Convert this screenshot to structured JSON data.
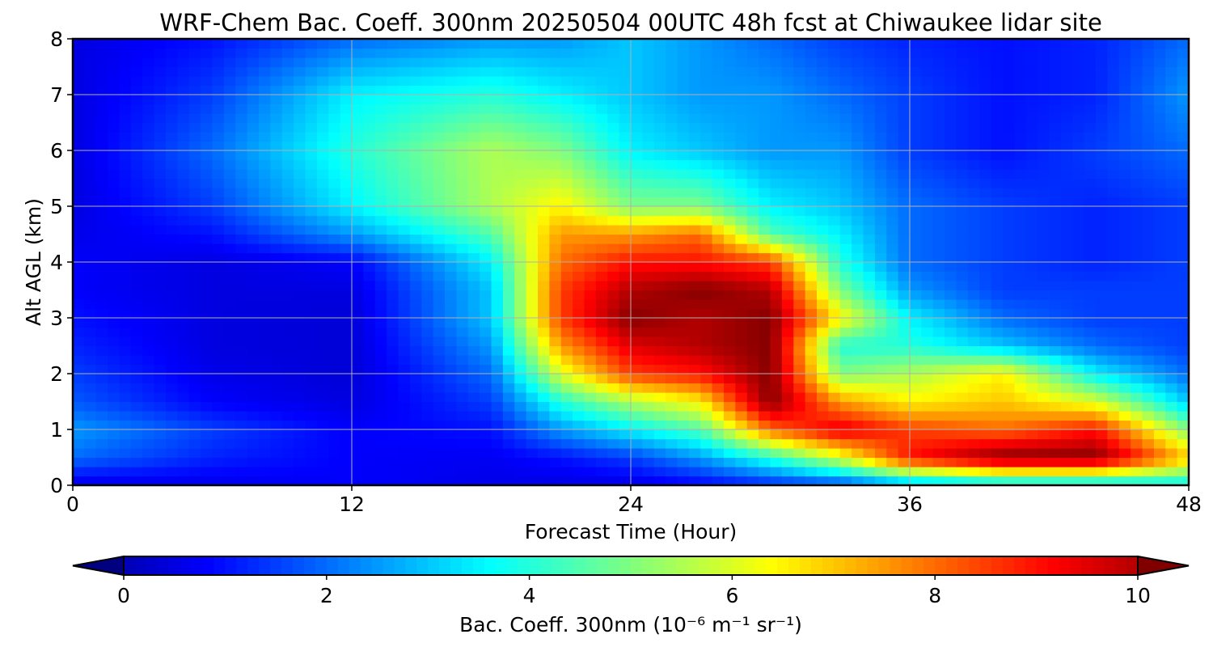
{
  "chart_data": {
    "type": "heatmap",
    "title": "WRF-Chem Bac. Coeff. 300nm  20250504 00UTC 48h fcst at Chiwaukee lidar site",
    "xlabel": "Forecast Time (Hour)",
    "ylabel": "Alt AGL (km)",
    "xlim": [
      0,
      48
    ],
    "ylim": [
      0,
      8
    ],
    "xticks": [
      0,
      12,
      24,
      36,
      48
    ],
    "yticks": [
      0,
      1,
      2,
      3,
      4,
      5,
      6,
      7,
      8
    ],
    "grid": true,
    "colormap": "jet",
    "colorbar": {
      "label": "Bac. Coeff. 300nm  (10⁻⁶ m⁻¹ sr⁻¹)",
      "min": 0,
      "max": 10,
      "ticks": [
        0,
        2,
        4,
        6,
        8,
        10
      ],
      "extend": "both",
      "orientation": "horizontal"
    },
    "x": [
      0,
      6,
      12,
      18,
      21,
      24,
      27,
      30,
      33,
      36,
      40,
      44,
      48
    ],
    "y": [
      0,
      0.5,
      1,
      1.5,
      2,
      2.5,
      3,
      3.5,
      4,
      4.5,
      5,
      6,
      7,
      8
    ],
    "z": [
      [
        0.5,
        0.6,
        0.8,
        0.6,
        0.5,
        0.5,
        0.8,
        1.2,
        1.5,
        2.5,
        3.0,
        3.0,
        3.5
      ],
      [
        2.0,
        1.2,
        0.8,
        0.7,
        1.0,
        1.5,
        2.5,
        4.0,
        6.0,
        9.0,
        10.5,
        10.5,
        7.0
      ],
      [
        2.5,
        1.5,
        0.8,
        1.0,
        2.5,
        3.5,
        4.5,
        8.0,
        9.5,
        8.5,
        8.0,
        9.0,
        5.0
      ],
      [
        1.8,
        0.8,
        0.5,
        1.5,
        4.0,
        5.5,
        6.5,
        10.5,
        7.5,
        6.5,
        7.0,
        6.0,
        3.0
      ],
      [
        1.5,
        0.6,
        0.4,
        2.0,
        6.0,
        8.5,
        9.0,
        10.5,
        5.0,
        5.5,
        6.5,
        3.5,
        2.0
      ],
      [
        1.2,
        0.5,
        0.4,
        2.5,
        7.5,
        9.5,
        10.0,
        10.5,
        4.0,
        4.0,
        3.0,
        2.0,
        1.5
      ],
      [
        1.0,
        0.5,
        0.4,
        3.0,
        8.5,
        10.5,
        10.0,
        10.5,
        6.5,
        3.5,
        2.0,
        1.5,
        1.5
      ],
      [
        0.8,
        0.5,
        0.5,
        3.0,
        8.5,
        10.0,
        10.5,
        10.0,
        5.0,
        2.5,
        1.5,
        1.5,
        1.5
      ],
      [
        0.8,
        0.5,
        0.8,
        3.5,
        8.0,
        9.0,
        9.0,
        8.5,
        4.0,
        2.0,
        1.5,
        1.2,
        1.5
      ],
      [
        0.6,
        1.0,
        2.5,
        4.5,
        7.5,
        7.5,
        8.0,
        4.5,
        3.5,
        2.0,
        1.5,
        1.2,
        1.5
      ],
      [
        0.5,
        1.5,
        3.5,
        5.5,
        6.5,
        5.0,
        5.0,
        3.5,
        3.0,
        2.0,
        1.5,
        1.2,
        1.5
      ],
      [
        0.5,
        2.0,
        4.0,
        5.5,
        5.0,
        3.5,
        3.0,
        2.5,
        2.5,
        1.5,
        1.0,
        1.5,
        2.0
      ],
      [
        0.5,
        1.5,
        3.5,
        4.0,
        3.5,
        3.0,
        2.5,
        2.5,
        2.0,
        1.5,
        1.0,
        1.2,
        2.5
      ],
      [
        0.5,
        1.0,
        2.0,
        2.5,
        2.5,
        3.0,
        2.5,
        2.0,
        1.5,
        1.2,
        1.0,
        1.2,
        2.0
      ]
    ]
  }
}
